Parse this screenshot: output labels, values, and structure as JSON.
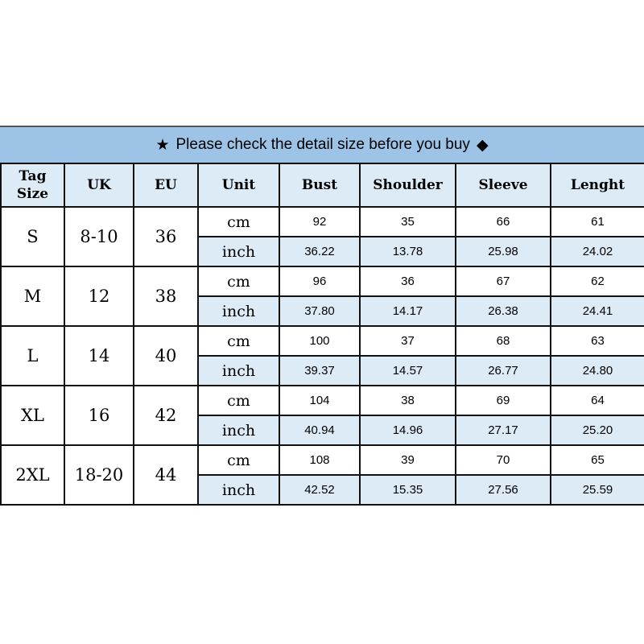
{
  "banner": {
    "star_icon": "★",
    "text": "Please check the detail size before you buy",
    "diamond_icon": "◆"
  },
  "header": [
    "Tag Size",
    "UK",
    "EU",
    "Unit",
    "Bust",
    "Shoulder",
    "Sleeve",
    "Lenght"
  ],
  "colors": {
    "banner": "#9dc3e6",
    "header": "#ddebf7",
    "inch_row": "#ddebf7"
  },
  "rows": [
    {
      "tag": "S",
      "uk": "8-10",
      "eu": "36",
      "cm": {
        "unit": "cm",
        "bust": "92",
        "shoulder": "35",
        "sleeve": "66",
        "length": "61"
      },
      "inch": {
        "unit": "inch",
        "bust": "36.22",
        "shoulder": "13.78",
        "sleeve": "25.98",
        "length": "24.02"
      }
    },
    {
      "tag": "M",
      "uk": "12",
      "eu": "38",
      "cm": {
        "unit": "cm",
        "bust": "96",
        "shoulder": "36",
        "sleeve": "67",
        "length": "62"
      },
      "inch": {
        "unit": "inch",
        "bust": "37.80",
        "shoulder": "14.17",
        "sleeve": "26.38",
        "length": "24.41"
      }
    },
    {
      "tag": "L",
      "uk": "14",
      "eu": "40",
      "cm": {
        "unit": "cm",
        "bust": "100",
        "shoulder": "37",
        "sleeve": "68",
        "length": "63"
      },
      "inch": {
        "unit": "inch",
        "bust": "39.37",
        "shoulder": "14.57",
        "sleeve": "26.77",
        "length": "24.80"
      }
    },
    {
      "tag": "XL",
      "uk": "16",
      "eu": "42",
      "cm": {
        "unit": "cm",
        "bust": "104",
        "shoulder": "38",
        "sleeve": "69",
        "length": "64"
      },
      "inch": {
        "unit": "inch",
        "bust": "40.94",
        "shoulder": "14.96",
        "sleeve": "27.17",
        "length": "25.20"
      }
    },
    {
      "tag": "2XL",
      "uk": "18-20",
      "eu": "44",
      "cm": {
        "unit": "cm",
        "bust": "108",
        "shoulder": "39",
        "sleeve": "70",
        "length": "65"
      },
      "inch": {
        "unit": "inch",
        "bust": "42.52",
        "shoulder": "15.35",
        "sleeve": "27.56",
        "length": "25.59"
      }
    }
  ]
}
